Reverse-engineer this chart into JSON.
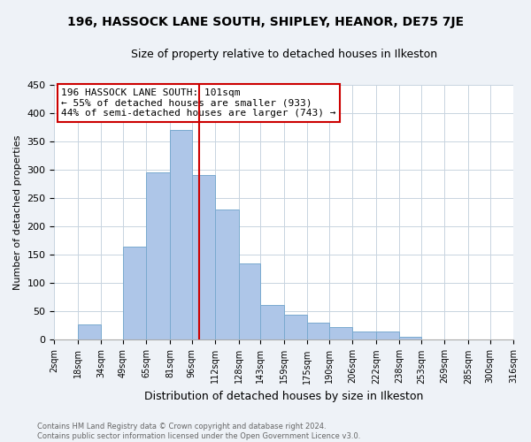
{
  "title": "196, HASSOCK LANE SOUTH, SHIPLEY, HEANOR, DE75 7JE",
  "subtitle": "Size of property relative to detached houses in Ilkeston",
  "xlabel": "Distribution of detached houses by size in Ilkeston",
  "ylabel": "Number of detached properties",
  "bin_starts": [
    2,
    18,
    34,
    49,
    65,
    81,
    96,
    112,
    128,
    143,
    159,
    175,
    190,
    206,
    222,
    238,
    253,
    269,
    285,
    300
  ],
  "bin_ends": [
    18,
    34,
    49,
    65,
    81,
    96,
    112,
    128,
    143,
    159,
    175,
    190,
    206,
    222,
    238,
    253,
    269,
    285,
    300,
    316
  ],
  "bar_heights": [
    0,
    27,
    0,
    165,
    295,
    370,
    290,
    230,
    135,
    62,
    44,
    30,
    23,
    14,
    14,
    5,
    0,
    0,
    0,
    0
  ],
  "bar_color": "#aec6e8",
  "bar_edge_color": "#7aaacf",
  "property_size": 101,
  "vline_color": "#cc0000",
  "annotation_box_edge": "#cc0000",
  "annotation_text_line1": "196 HASSOCK LANE SOUTH: 101sqm",
  "annotation_text_line2": "← 55% of detached houses are smaller (933)",
  "annotation_text_line3": "44% of semi-detached houses are larger (743) →",
  "ylim": [
    0,
    450
  ],
  "tick_labels": [
    "2sqm",
    "18sqm",
    "34sqm",
    "49sqm",
    "65sqm",
    "81sqm",
    "96sqm",
    "112sqm",
    "128sqm",
    "143sqm",
    "159sqm",
    "175sqm",
    "190sqm",
    "206sqm",
    "222sqm",
    "238sqm",
    "253sqm",
    "269sqm",
    "285sqm",
    "300sqm",
    "316sqm"
  ],
  "tick_positions": [
    2,
    18,
    34,
    49,
    65,
    81,
    96,
    112,
    128,
    143,
    159,
    175,
    190,
    206,
    222,
    238,
    253,
    269,
    285,
    300,
    316
  ],
  "footer_line1": "Contains HM Land Registry data © Crown copyright and database right 2024.",
  "footer_line2": "Contains public sector information licensed under the Open Government Licence v3.0.",
  "background_color": "#eef2f7",
  "plot_bg_color": "#ffffff",
  "title_fontsize": 10,
  "subtitle_fontsize": 9,
  "ylabel_fontsize": 8,
  "xlabel_fontsize": 9,
  "ytick_fontsize": 8,
  "xtick_fontsize": 7,
  "annotation_fontsize": 8,
  "footer_fontsize": 6
}
